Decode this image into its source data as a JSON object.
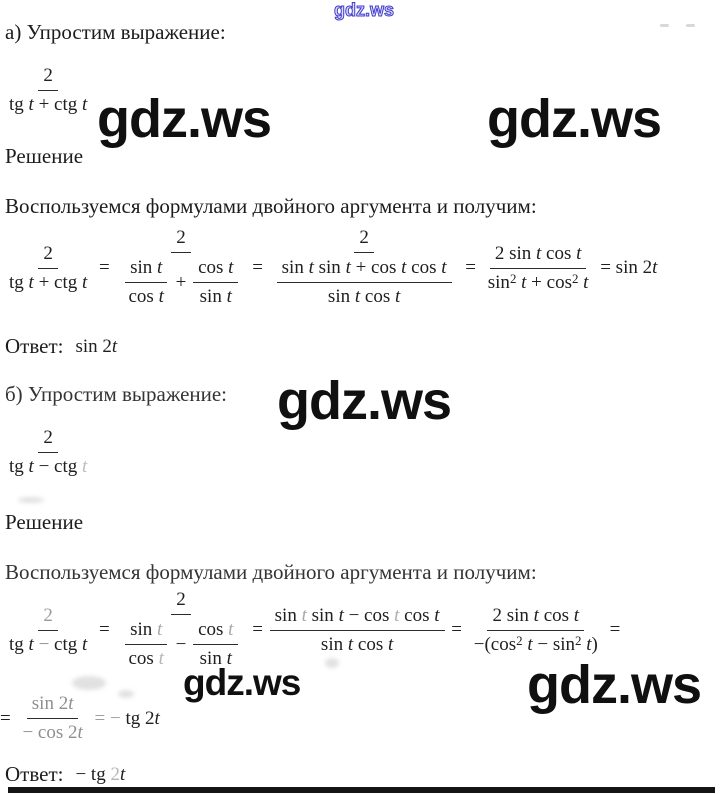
{
  "colors": {
    "ink": "#1c1c1c",
    "faded": "#b5b5b5",
    "watermark_blue": "#403acd",
    "bar": "#151515"
  },
  "watermarks": {
    "top": "gdz.ws",
    "row1_left": "gdz.ws",
    "row1_right": "gdz.ws",
    "middle": "gdz.ws",
    "bottom_left": "gdz.ws",
    "bottom_right": "gdz.ws"
  },
  "labels": {
    "part_a_heading": "а) Упростим выражение:",
    "part_b_heading": "б) Упростим выражение:",
    "solution": "Решение",
    "lemma": "Воспользуемся формулами двойного аргумента и получим:",
    "answer_label": "Ответ:"
  },
  "math": {
    "expr_a": [
      {
        "f": {
          "n": [
            {
              "x": "2"
            }
          ],
          "d": [
            {
              "x": "tg "
            },
            {
              "i": "t"
            },
            {
              "x": " + ctg "
            },
            {
              "i": "t"
            }
          ]
        }
      }
    ],
    "chain_a": [
      {
        "f": {
          "n": [
            {
              "x": "2"
            }
          ],
          "d": [
            {
              "x": "tg "
            },
            {
              "i": "t"
            },
            {
              "x": " + ctg "
            },
            {
              "i": "t"
            }
          ]
        }
      },
      {
        "x": " = "
      },
      {
        "f": {
          "n": [
            {
              "x": "2"
            }
          ],
          "d": [
            {
              "f": {
                "n": [
                  {
                    "x": "sin "
                  },
                  {
                    "i": "t"
                  }
                ],
                "d": [
                  {
                    "x": "cos "
                  },
                  {
                    "i": "t"
                  }
                ]
              }
            },
            {
              "x": " + "
            },
            {
              "f": {
                "n": [
                  {
                    "x": "cos "
                  },
                  {
                    "i": "t"
                  }
                ],
                "d": [
                  {
                    "x": "sin "
                  },
                  {
                    "i": "t"
                  }
                ]
              }
            }
          ]
        }
      },
      {
        "x": " = "
      },
      {
        "f": {
          "n": [
            {
              "x": "2"
            }
          ],
          "d": [
            {
              "f": {
                "n": [
                  {
                    "x": "sin "
                  },
                  {
                    "i": "t"
                  },
                  {
                    "x": " sin "
                  },
                  {
                    "i": "t"
                  },
                  {
                    "x": " + cos "
                  },
                  {
                    "i": "t"
                  },
                  {
                    "x": " cos "
                  },
                  {
                    "i": "t"
                  }
                ],
                "d": [
                  {
                    "x": "sin "
                  },
                  {
                    "i": "t"
                  },
                  {
                    "x": " cos "
                  },
                  {
                    "i": "t"
                  }
                ]
              }
            }
          ]
        }
      },
      {
        "x": " = "
      },
      {
        "f": {
          "n": [
            {
              "x": "2 sin "
            },
            {
              "i": "t"
            },
            {
              "x": " cos "
            },
            {
              "i": "t"
            }
          ],
          "d": [
            {
              "x": "sin"
            },
            {
              "s": "2"
            },
            {
              "x": " "
            },
            {
              "i": "t"
            },
            {
              "x": " + cos"
            },
            {
              "s": "2"
            },
            {
              "x": " "
            },
            {
              "i": "t"
            }
          ]
        }
      },
      {
        "x": " = sin 2"
      },
      {
        "i": "t"
      }
    ],
    "answer_a": [
      {
        "x": "sin 2"
      },
      {
        "i": "t"
      }
    ],
    "expr_b": [
      {
        "f": {
          "n": [
            {
              "x": "2"
            }
          ],
          "d": [
            {
              "x": "tg "
            },
            {
              "i": "t"
            },
            {
              "x": " − ctg "
            },
            {
              "i": "t",
              "c": "#bdbdbd"
            }
          ]
        }
      }
    ],
    "chain_b": [
      {
        "f": {
          "n": [
            {
              "x": "2",
              "c": "#9a9a9a"
            }
          ],
          "d": [
            {
              "x": "tg "
            },
            {
              "i": "t"
            },
            {
              "x": " − ",
              "c": "#8f8f8f"
            },
            {
              "x": "ctg "
            },
            {
              "i": "t"
            }
          ]
        }
      },
      {
        "x": " = "
      },
      {
        "f": {
          "n": [
            {
              "x": "2"
            }
          ],
          "d": [
            {
              "f": {
                "n": [
                  {
                    "x": "sin "
                  },
                  {
                    "i": "t",
                    "c": "#a8a8a8"
                  }
                ],
                "d": [
                  {
                    "x": "cos "
                  },
                  {
                    "i": "t",
                    "c": "#b5b5b5"
                  }
                ]
              }
            },
            {
              "x": " − "
            },
            {
              "f": {
                "n": [
                  {
                    "x": "cos "
                  },
                  {
                    "i": "t",
                    "c": "#a8a8a8"
                  }
                ],
                "d": [
                  {
                    "x": "sin "
                  },
                  {
                    "i": "t"
                  }
                ]
              }
            }
          ]
        }
      },
      {
        "x": " = "
      },
      {
        "f": {
          "n": [
            {
              "x": "sin "
            },
            {
              "i": "t",
              "c": "#a8a8a8"
            },
            {
              "x": " sin "
            },
            {
              "i": "t"
            },
            {
              "x": " − cos "
            },
            {
              "i": "t",
              "c": "#b0b0b0"
            },
            {
              "x": " cos "
            },
            {
              "i": "t"
            }
          ],
          "d": [
            {
              "x": "sin "
            },
            {
              "i": "t"
            },
            {
              "x": " cos "
            },
            {
              "i": "t"
            }
          ]
        }
      },
      {
        "x": " = "
      },
      {
        "f": {
          "n": [
            {
              "x": "2 sin"
            },
            {
              "x": " ",
              "c": "#999999"
            },
            {
              "i": "t"
            },
            {
              "x": " cos "
            },
            {
              "i": "t"
            }
          ],
          "d": [
            {
              "x": "−(cos"
            },
            {
              "s": "2"
            },
            {
              "x": " "
            },
            {
              "i": "t"
            },
            {
              "x": " − sin"
            },
            {
              "s": "2"
            },
            {
              "x": " "
            },
            {
              "i": "t"
            },
            {
              "x": ")"
            }
          ]
        }
      },
      {
        "x": " ="
      }
    ],
    "line_b2": [
      {
        "x": "= "
      },
      {
        "f": {
          "n": [
            {
              "x": "sin 2",
              "c": "#8f8f8f"
            },
            {
              "i": "t",
              "c": "#8f8f8f"
            }
          ],
          "d": [
            {
              "x": "− cos 2",
              "c": "#8f8f8f"
            },
            {
              "i": "t",
              "c": "#8f8f8f"
            }
          ]
        }
      },
      {
        "x": " = ",
        "c": "#9f9f9f"
      },
      {
        "x": "− ",
        "c": "#9f9f9f"
      },
      {
        "x": "tg 2"
      },
      {
        "i": "t"
      }
    ],
    "answer_b": [
      {
        "x": "− tg "
      },
      {
        "x": "2",
        "c": "#b5b5b5"
      },
      {
        "i": "t"
      }
    ]
  },
  "note_inner_fraction_b": "2 / (tg t − ctg t)",
  "final_answers": {
    "a": "sin 2t",
    "b": "−tg 2t"
  }
}
